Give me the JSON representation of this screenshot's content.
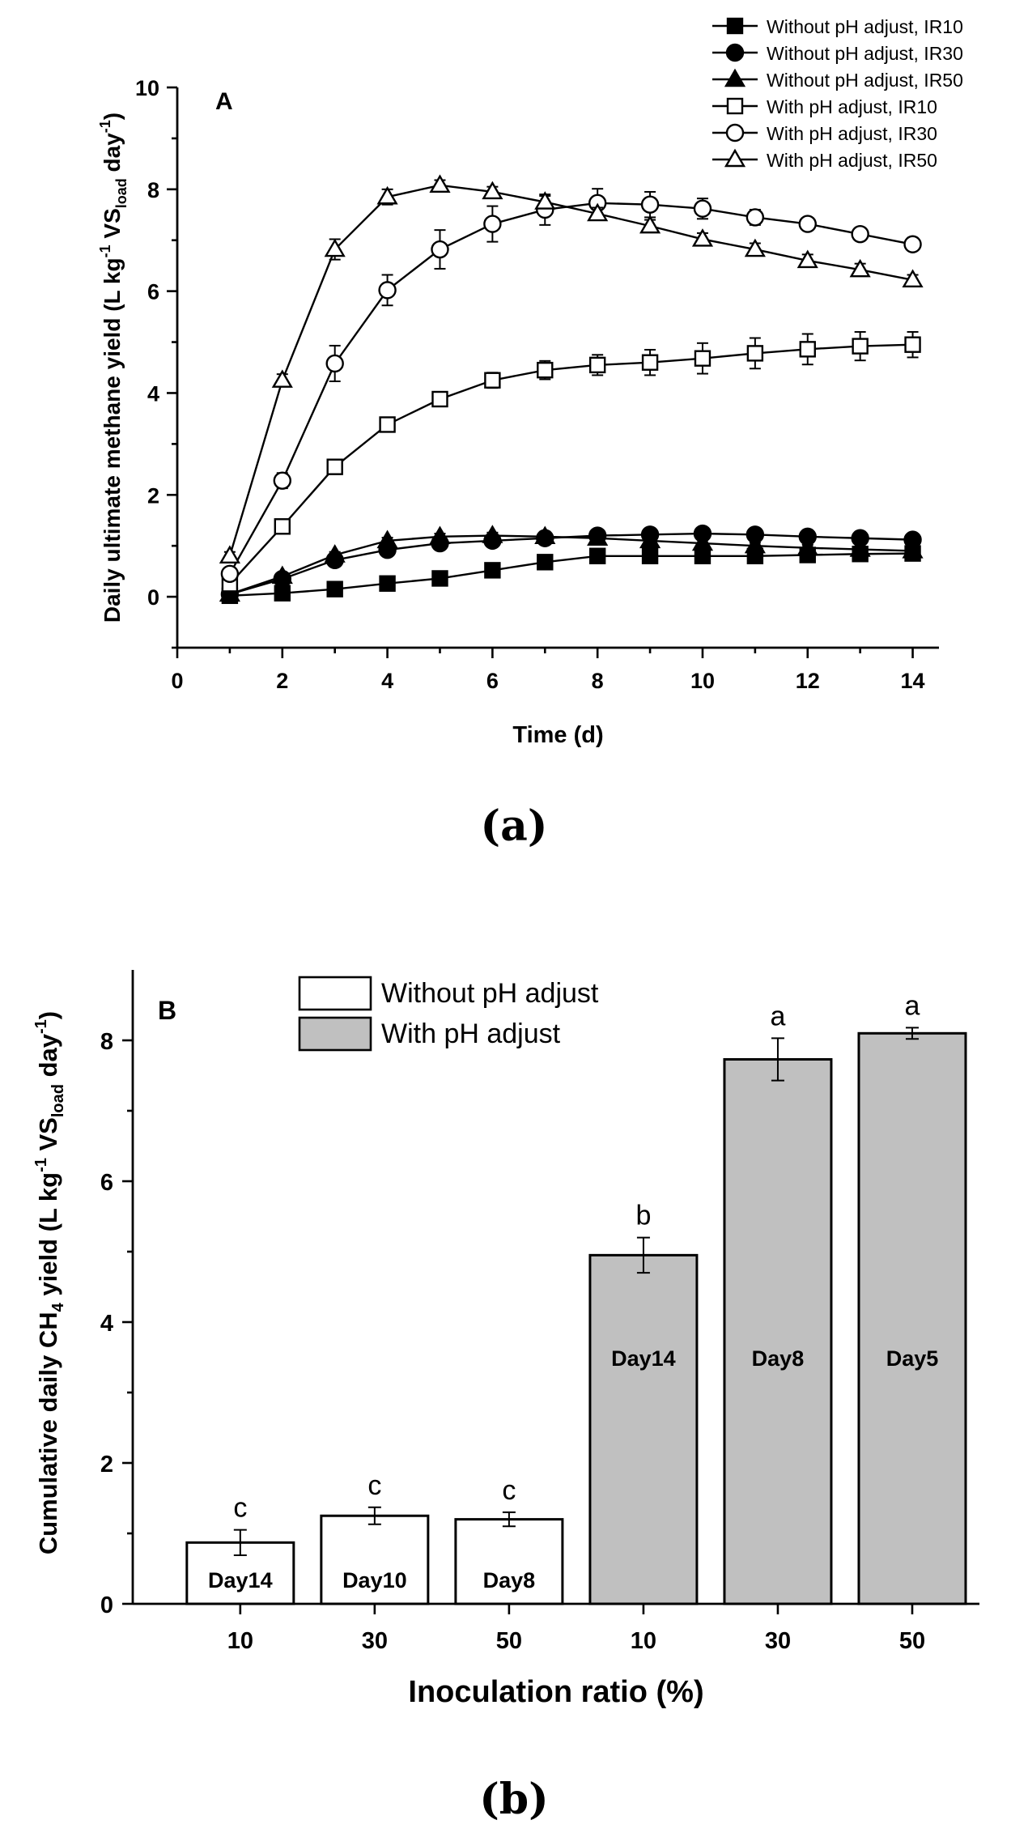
{
  "chart_data": [
    {
      "type": "line",
      "panel_letter": "A",
      "caption": "(a)",
      "xlabel": "Time (d)",
      "ylabel": {
        "pre": "Daily ultimate methane yield (L kg",
        "sup1": "-1",
        "mid": " VS",
        "sub": "load",
        "post": " day",
        "sup2": "-1",
        "end": ")"
      },
      "xlim": [
        0,
        14.5
      ],
      "ylim": [
        -1,
        10
      ],
      "xticks": [
        0,
        2,
        4,
        6,
        8,
        10,
        12,
        14
      ],
      "yticks": [
        0,
        2,
        4,
        6,
        8,
        10
      ],
      "legend_position": "top-right",
      "x": [
        1,
        2,
        3,
        4,
        5,
        6,
        7,
        8,
        9,
        10,
        11,
        12,
        13,
        14
      ],
      "series": [
        {
          "name": "Without pH adjust, IR10",
          "marker": "square",
          "filled": true,
          "values": [
            0.02,
            0.07,
            0.15,
            0.26,
            0.36,
            0.52,
            0.68,
            0.8,
            0.8,
            0.8,
            0.8,
            0.82,
            0.84,
            0.85
          ],
          "errors": [
            0.03,
            0.03,
            0.03,
            0.04,
            0.04,
            0.05,
            0.06,
            0.08,
            0.12,
            0.12,
            0.12,
            0.12,
            0.12,
            0.12
          ]
        },
        {
          "name": "Without pH adjust, IR30",
          "marker": "circle",
          "filled": true,
          "values": [
            0.05,
            0.35,
            0.72,
            0.92,
            1.05,
            1.1,
            1.15,
            1.2,
            1.22,
            1.24,
            1.22,
            1.18,
            1.15,
            1.12
          ],
          "errors": [
            0.04,
            0.05,
            0.06,
            0.06,
            0.06,
            0.06,
            0.06,
            0.06,
            0.06,
            0.06,
            0.06,
            0.06,
            0.06,
            0.06
          ]
        },
        {
          "name": "Without pH adjust, IR50",
          "marker": "triangle",
          "filled": true,
          "values": [
            0.05,
            0.4,
            0.82,
            1.1,
            1.18,
            1.2,
            1.18,
            1.15,
            1.1,
            1.05,
            1.0,
            0.96,
            0.93,
            0.9
          ],
          "errors": [
            0.04,
            0.05,
            0.06,
            0.06,
            0.06,
            0.06,
            0.06,
            0.06,
            0.06,
            0.06,
            0.06,
            0.06,
            0.06,
            0.06
          ]
        },
        {
          "name": "With pH adjust, IR10",
          "marker": "square",
          "filled": false,
          "values": [
            0.25,
            1.38,
            2.55,
            3.38,
            3.88,
            4.25,
            4.45,
            4.55,
            4.6,
            4.68,
            4.78,
            4.86,
            4.92,
            4.95
          ],
          "errors": [
            0.05,
            0.08,
            0.1,
            0.12,
            0.12,
            0.15,
            0.18,
            0.2,
            0.25,
            0.3,
            0.3,
            0.3,
            0.28,
            0.25
          ]
        },
        {
          "name": "With pH adjust, IR30",
          "marker": "circle",
          "filled": false,
          "values": [
            0.45,
            2.28,
            4.58,
            6.02,
            6.82,
            7.32,
            7.6,
            7.73,
            7.7,
            7.62,
            7.45,
            7.32,
            7.12,
            6.92
          ],
          "errors": [
            0.1,
            0.15,
            0.35,
            0.3,
            0.38,
            0.35,
            0.3,
            0.28,
            0.25,
            0.2,
            0.15,
            0.12,
            0.1,
            0.1
          ]
        },
        {
          "name": "With pH adjust, IR50",
          "marker": "triangle",
          "filled": false,
          "values": [
            0.8,
            4.25,
            6.82,
            7.85,
            8.08,
            7.95,
            7.75,
            7.52,
            7.28,
            7.02,
            6.82,
            6.6,
            6.42,
            6.22
          ],
          "errors": [
            0.08,
            0.12,
            0.2,
            0.15,
            0.1,
            0.1,
            0.12,
            0.12,
            0.12,
            0.12,
            0.12,
            0.12,
            0.12,
            0.1
          ]
        }
      ]
    },
    {
      "type": "bar",
      "panel_letter": "B",
      "caption": "(b)",
      "xlabel": "Inoculation ratio (%)",
      "ylabel": {
        "pre": "Cumulative daily CH",
        "sub1": "4",
        "mid": " yield (L kg",
        "sup1": "-1",
        "mid2": " VS",
        "sub2": "load",
        "post": " day",
        "sup2": "-1",
        "end": ")"
      },
      "ylim": [
        0,
        9
      ],
      "yticks": [
        0,
        2,
        4,
        6,
        8
      ],
      "legend_position": "top-left",
      "legend": [
        {
          "name": "Without pH adjust",
          "color": "#ffffff"
        },
        {
          "name": "With pH adjust",
          "color": "#c0c0c0"
        }
      ],
      "categories": [
        "10",
        "30",
        "50",
        "10",
        "30",
        "50"
      ],
      "values": [
        0.87,
        1.25,
        1.2,
        4.95,
        7.73,
        8.1
      ],
      "errors": [
        0.18,
        0.12,
        0.1,
        0.25,
        0.3,
        0.08
      ],
      "groups": [
        0,
        0,
        0,
        1,
        1,
        1
      ],
      "bar_labels": [
        "Day14",
        "Day10",
        "Day8",
        "Day14",
        "Day8",
        "Day5"
      ],
      "significance": [
        "c",
        "c",
        "c",
        "b",
        "a",
        "a"
      ]
    }
  ]
}
